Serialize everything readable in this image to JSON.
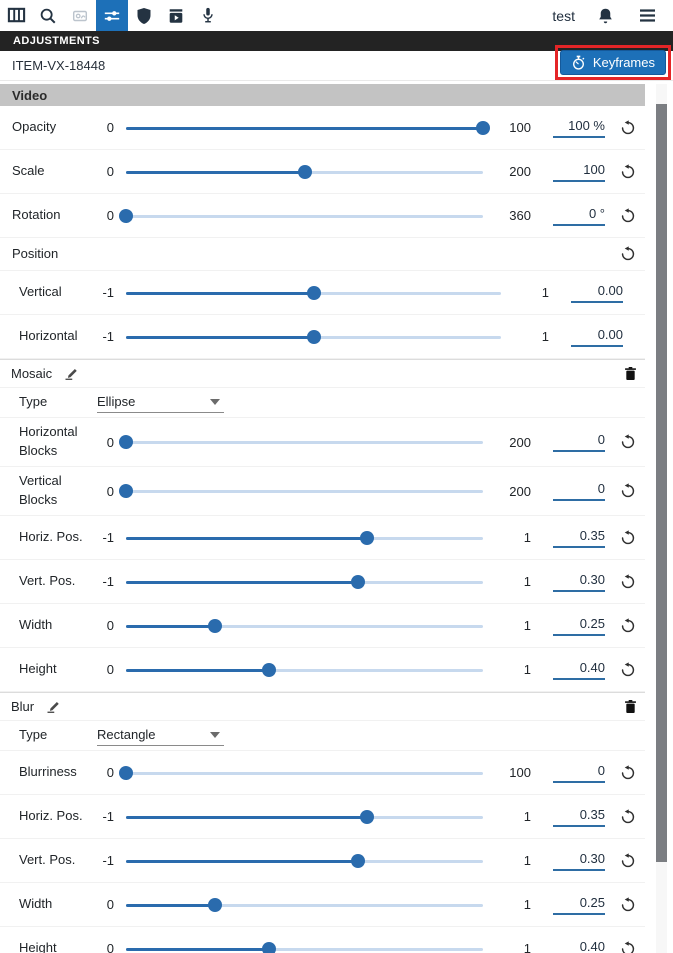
{
  "toolbar": {
    "user": "test",
    "icons": [
      "layout-columns-icon",
      "search-icon",
      "effects-disabled-icon",
      "adjustments-icon",
      "shield-icon",
      "export-player-icon",
      "microphone-icon",
      "notifications-bell-icon",
      "menu-hamburger-icon"
    ],
    "active_icon": "adjustments-icon"
  },
  "panel": {
    "title": "ADJUSTMENTS",
    "item_id": "ITEM-VX-18448",
    "keyframes_label": "Keyframes"
  },
  "colors": {
    "accent_blue": "#1d70b8",
    "slider_blue": "#2a6bad",
    "slider_track_light": "#c7d9ee",
    "annotation_red": "#e42527",
    "section_header_gray": "#c3c3c3",
    "title_bar_black": "#232323"
  },
  "rows": [
    {
      "kind": "section",
      "key": "video",
      "label": "Video"
    },
    {
      "kind": "slider",
      "key": "opacity",
      "label": "Opacity",
      "min": "0",
      "max": "100",
      "value": "100",
      "unit": " %",
      "pct": 100,
      "reset": true
    },
    {
      "kind": "slider",
      "key": "scale",
      "label": "Scale",
      "min": "0",
      "max": "200",
      "value": "100",
      "unit": "",
      "pct": 50,
      "reset": true
    },
    {
      "kind": "slider",
      "key": "rotation",
      "label": "Rotation",
      "min": "0",
      "max": "360",
      "value": "0",
      "unit": " °",
      "pct": 0,
      "reset": true
    },
    {
      "kind": "subheader",
      "key": "position",
      "label": "Position",
      "reset": true
    },
    {
      "kind": "slider",
      "key": "position-vertical",
      "label": "Vertical",
      "min": "-1",
      "max": "1",
      "value": "0.00",
      "unit": "",
      "pct": 50,
      "reset": false,
      "indent": true
    },
    {
      "kind": "slider",
      "key": "position-horizontal",
      "label": "Horizontal",
      "min": "-1",
      "max": "1",
      "value": "0.00",
      "unit": "",
      "pct": 50,
      "reset": false,
      "indent": true
    },
    {
      "kind": "effect",
      "key": "mosaic",
      "label": "Mosaic",
      "edit": true,
      "delete": true
    },
    {
      "kind": "select",
      "key": "mosaic-type",
      "label": "Type",
      "value": "Ellipse",
      "indent": true
    },
    {
      "kind": "slider",
      "key": "mosaic-horizontal-blocks",
      "label": "Horizontal Blocks",
      "min": "0",
      "max": "200",
      "value": "0",
      "unit": "",
      "pct": 0,
      "reset": true,
      "tall": true,
      "indent": true
    },
    {
      "kind": "slider",
      "key": "mosaic-vertical-blocks",
      "label": "Vertical Blocks",
      "min": "0",
      "max": "200",
      "value": "0",
      "unit": "",
      "pct": 0,
      "reset": true,
      "tall": true,
      "indent": true
    },
    {
      "kind": "slider",
      "key": "mosaic-horiz-pos",
      "label": "Horiz. Pos.",
      "min": "-1",
      "max": "1",
      "value": "0.35",
      "unit": "",
      "pct": 67.5,
      "reset": true,
      "indent": true
    },
    {
      "kind": "slider",
      "key": "mosaic-vert-pos",
      "label": "Vert. Pos.",
      "min": "-1",
      "max": "1",
      "value": "0.30",
      "unit": "",
      "pct": 65,
      "reset": true,
      "indent": true
    },
    {
      "kind": "slider",
      "key": "mosaic-width",
      "label": "Width",
      "min": "0",
      "max": "1",
      "value": "0.25",
      "unit": "",
      "pct": 25,
      "reset": true,
      "indent": true
    },
    {
      "kind": "slider",
      "key": "mosaic-height",
      "label": "Height",
      "min": "0",
      "max": "1",
      "value": "0.40",
      "unit": "",
      "pct": 40,
      "reset": true,
      "indent": true
    },
    {
      "kind": "effect",
      "key": "blur",
      "label": "Blur",
      "edit": true,
      "delete": true
    },
    {
      "kind": "select",
      "key": "blur-type",
      "label": "Type",
      "value": "Rectangle",
      "indent": true
    },
    {
      "kind": "slider",
      "key": "blur-blurriness",
      "label": "Blurriness",
      "min": "0",
      "max": "100",
      "value": "0",
      "unit": "",
      "pct": 0,
      "reset": true,
      "indent": true
    },
    {
      "kind": "slider",
      "key": "blur-horiz-pos",
      "label": "Horiz. Pos.",
      "min": "-1",
      "max": "1",
      "value": "0.35",
      "unit": "",
      "pct": 67.5,
      "reset": true,
      "indent": true
    },
    {
      "kind": "slider",
      "key": "blur-vert-pos",
      "label": "Vert. Pos.",
      "min": "-1",
      "max": "1",
      "value": "0.30",
      "unit": "",
      "pct": 65,
      "reset": true,
      "indent": true
    },
    {
      "kind": "slider",
      "key": "blur-width",
      "label": "Width",
      "min": "0",
      "max": "1",
      "value": "0.25",
      "unit": "",
      "pct": 25,
      "reset": true,
      "indent": true
    },
    {
      "kind": "slider",
      "key": "blur-height",
      "label": "Height",
      "min": "0",
      "max": "1",
      "value": "0.40",
      "unit": "",
      "pct": 40,
      "reset": true,
      "indent": true
    }
  ]
}
